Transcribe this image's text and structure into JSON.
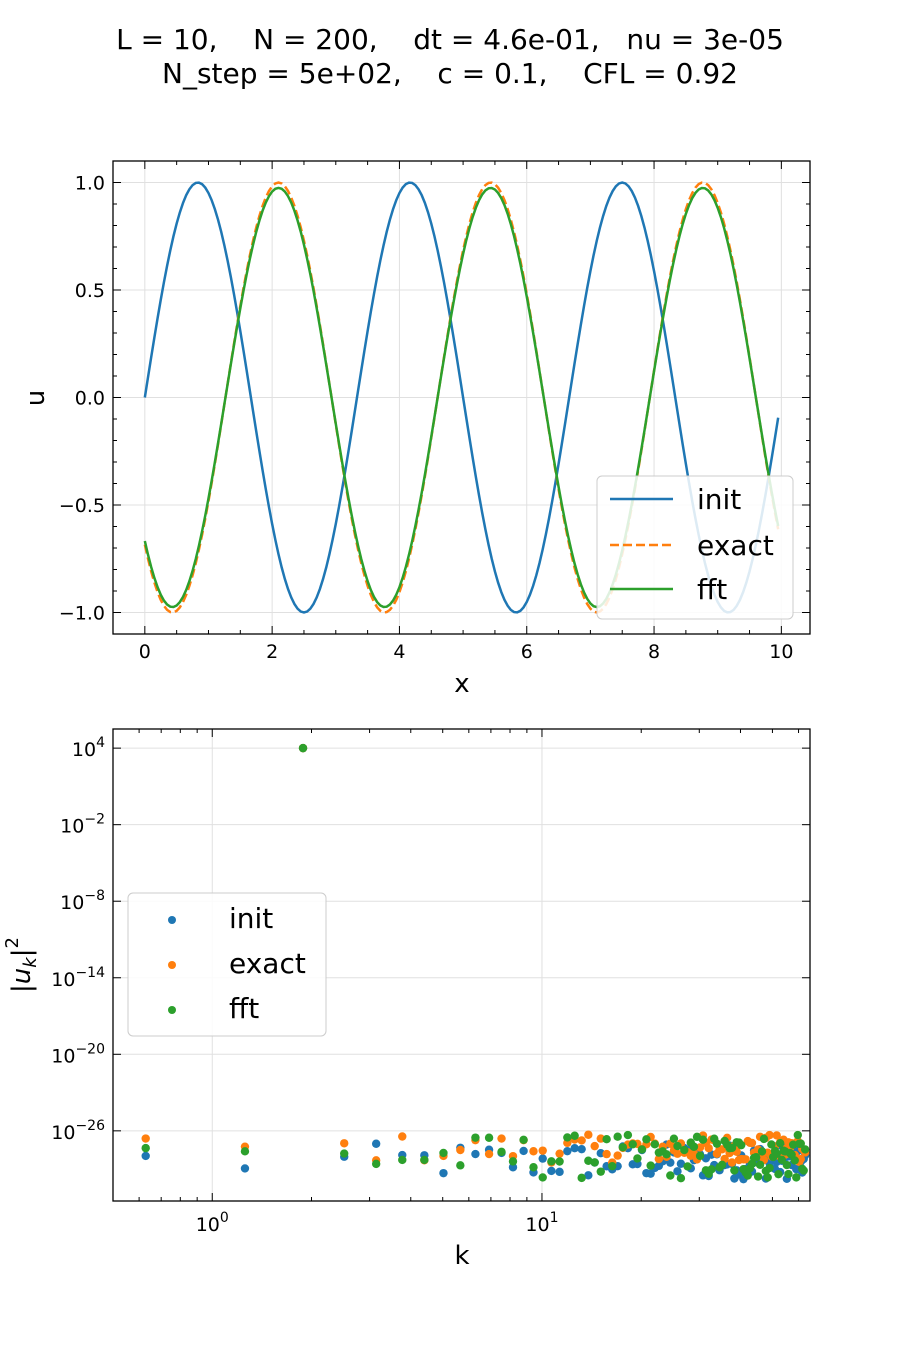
{
  "suptitle": {
    "line1": "L = 10,    N = 200,    dt = 4.6e-01,   nu = 3e-05",
    "line2": "N_step = 5e+02,    c = 0.1,    CFL = 0.92"
  },
  "colors": {
    "init": "#1f77b4",
    "exact": "#ff7f0e",
    "fft": "#2ca02c",
    "grid": "#e0e0e0"
  },
  "chart_data": [
    {
      "type": "line",
      "xlabel": "x",
      "ylabel": "u",
      "xlim": [
        -0.5,
        10.45
      ],
      "ylim": [
        -1.1,
        1.1
      ],
      "xticks": [
        0,
        2,
        4,
        6,
        8,
        10
      ],
      "xtick_labels": [
        "0",
        "2",
        "4",
        "6",
        "8",
        "10"
      ],
      "yticks": [
        1.0,
        0.5,
        0.0,
        -0.5,
        -1.0
      ],
      "ytick_labels": [
        "1.0",
        "0.5",
        "0.0",
        "−0.5",
        "−1.0"
      ],
      "grid": true,
      "legend_position": "lower right",
      "x_range": [
        0,
        9.95
      ],
      "num_points": 200,
      "series": [
        {
          "name": "init",
          "style": "solid",
          "amplitude": 1.0,
          "wavelength": 3.3333,
          "phase_shift": 0.0
        },
        {
          "name": "exact",
          "style": "dashed",
          "amplitude": 1.0,
          "wavelength": 3.3333,
          "phase_shift": 4.6
        },
        {
          "name": "fft",
          "style": "solid",
          "amplitude": 0.975,
          "wavelength": 3.3333,
          "phase_shift": 4.6
        }
      ]
    },
    {
      "type": "scatter",
      "xlabel": "k",
      "ylabel": "|u_k|^2",
      "xscale": "log",
      "yscale": "log",
      "xlim": [
        0.5,
        65
      ],
      "ylim_exp": [
        -31.5,
        5.5
      ],
      "xticks": [
        1,
        10
      ],
      "xtick_labels": [
        {
          "base": "10",
          "exp": "0"
        },
        {
          "base": "10",
          "exp": "1"
        }
      ],
      "yticks_exp": [
        4,
        -2,
        -8,
        -14,
        -20,
        -26
      ],
      "ytick_labels": [
        {
          "base": "10",
          "exp": "4"
        },
        {
          "base": "10",
          "exp": "−2"
        },
        {
          "base": "10",
          "exp": "−8"
        },
        {
          "base": "10",
          "exp": "−14"
        },
        {
          "base": "10",
          "exp": "−20"
        },
        {
          "base": "10",
          "exp": "−26"
        }
      ],
      "grid": true,
      "legend_position": "center left",
      "peak": {
        "k": 1.885,
        "value": "1e4"
      },
      "k_step": 0.6283,
      "k_count": 100,
      "series": [
        {
          "name": "init",
          "log10_range": [
            -29.8,
            -27.0
          ]
        },
        {
          "name": "exact",
          "log10_range": [
            -28.5,
            -26.3
          ]
        },
        {
          "name": "fft",
          "log10_range": [
            -29.8,
            -26.3
          ]
        }
      ]
    }
  ]
}
